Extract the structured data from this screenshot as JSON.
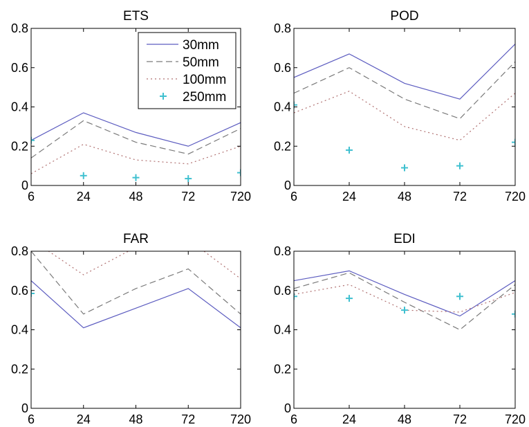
{
  "chart_data": [
    {
      "type": "line",
      "title": "ETS",
      "x": [
        "6",
        "24",
        "48",
        "72",
        "720"
      ],
      "ylim": [
        0,
        0.8
      ],
      "yticks": [
        "0",
        "0.2",
        "0.4",
        "0.6",
        "0.8"
      ],
      "grid": false,
      "legend": true,
      "legend_position": "top-right",
      "series": [
        {
          "name": "30mm",
          "style": "solid",
          "color": "#5c5cc0",
          "values": [
            0.23,
            0.37,
            0.27,
            0.2,
            0.32
          ]
        },
        {
          "name": "50mm",
          "style": "dashed",
          "color": "#7a7a7a",
          "values": [
            0.14,
            0.33,
            0.22,
            0.16,
            0.29
          ]
        },
        {
          "name": "100mm",
          "style": "dotted",
          "color": "#b07070",
          "values": [
            0.06,
            0.21,
            0.13,
            0.11,
            0.2
          ]
        },
        {
          "name": "250mm",
          "style": "marker",
          "color": "#3fc0d0",
          "values": [
            0.23,
            0.05,
            0.04,
            0.035,
            0.065
          ]
        }
      ]
    },
    {
      "type": "line",
      "title": "POD",
      "x": [
        "6",
        "24",
        "48",
        "72",
        "720"
      ],
      "ylim": [
        0,
        0.8
      ],
      "yticks": [
        "0",
        "0.2",
        "0.4",
        "0.6",
        "0.8"
      ],
      "grid": false,
      "legend": false,
      "series": [
        {
          "name": "30mm",
          "style": "solid",
          "color": "#5c5cc0",
          "values": [
            0.55,
            0.67,
            0.52,
            0.44,
            0.72
          ]
        },
        {
          "name": "50mm",
          "style": "dashed",
          "color": "#7a7a7a",
          "values": [
            0.47,
            0.6,
            0.44,
            0.34,
            0.63
          ]
        },
        {
          "name": "100mm",
          "style": "dotted",
          "color": "#b07070",
          "values": [
            0.37,
            0.48,
            0.3,
            0.23,
            0.47
          ]
        },
        {
          "name": "250mm",
          "style": "marker",
          "color": "#3fc0d0",
          "values": [
            0.41,
            0.18,
            0.09,
            0.1,
            0.22
          ]
        }
      ]
    },
    {
      "type": "line",
      "title": "FAR",
      "x": [
        "6",
        "24",
        "48",
        "72",
        "720"
      ],
      "ylim": [
        0,
        0.8
      ],
      "yticks": [
        "0",
        "0.2",
        "0.4",
        "0.6",
        "0.8"
      ],
      "grid": false,
      "legend": false,
      "series": [
        {
          "name": "30mm",
          "style": "solid",
          "color": "#5c5cc0",
          "values": [
            0.65,
            0.41,
            0.51,
            0.61,
            0.41
          ]
        },
        {
          "name": "50mm",
          "style": "dashed",
          "color": "#7a7a7a",
          "values": [
            0.8,
            0.48,
            0.61,
            0.71,
            0.48
          ]
        },
        {
          "name": "100mm",
          "style": "dotted",
          "color": "#b07070",
          "values": [
            0.86,
            0.68,
            0.82,
            0.86,
            0.66
          ]
        },
        {
          "name": "250mm",
          "style": "marker",
          "color": "#3fc0d0",
          "values": [
            0.585,
            null,
            null,
            null,
            null
          ]
        }
      ]
    },
    {
      "type": "line",
      "title": "EDI",
      "x": [
        "6",
        "24",
        "48",
        "72",
        "720"
      ],
      "ylim": [
        0,
        0.8
      ],
      "yticks": [
        "0",
        "0.2",
        "0.4",
        "0.6",
        "0.8"
      ],
      "grid": false,
      "legend": false,
      "series": [
        {
          "name": "30mm",
          "style": "solid",
          "color": "#5c5cc0",
          "values": [
            0.65,
            0.7,
            0.58,
            0.47,
            0.65
          ]
        },
        {
          "name": "50mm",
          "style": "dashed",
          "color": "#7a7a7a",
          "values": [
            0.61,
            0.69,
            0.54,
            0.4,
            0.63
          ]
        },
        {
          "name": "100mm",
          "style": "dotted",
          "color": "#b07070",
          "values": [
            0.58,
            0.63,
            0.5,
            0.49,
            0.59
          ]
        },
        {
          "name": "250mm",
          "style": "marker",
          "color": "#3fc0d0",
          "values": [
            0.57,
            0.56,
            0.5,
            0.57,
            0.48
          ]
        }
      ]
    }
  ]
}
